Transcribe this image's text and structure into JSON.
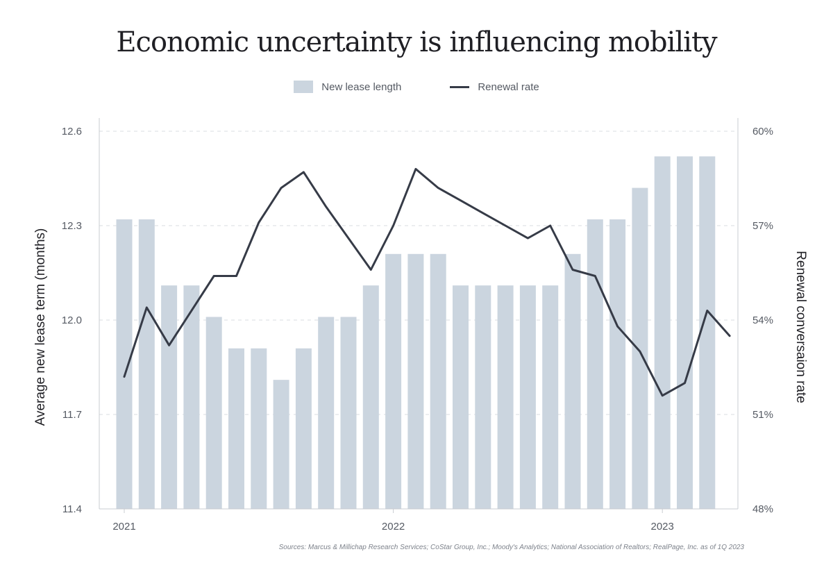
{
  "chart_data": {
    "type": "bar",
    "title": "Economic uncertainty is influencing mobility",
    "legend": {
      "bar_label": "New lease length",
      "line_label": "Renewal rate",
      "placement": "top-center"
    },
    "ylabel": "Average new lease term (months)",
    "ylabel_right": "Renewal conversaion rate",
    "ylim": [
      11.4,
      12.6
    ],
    "yticks": [
      "11.4",
      "11.7",
      "12.0",
      "12.3",
      "12.6"
    ],
    "ylim_right": [
      48,
      60
    ],
    "yticks_right": [
      "48%",
      "51%",
      "54%",
      "57%",
      "60%"
    ],
    "xtick_labels": [
      {
        "label": "2021",
        "index": 0
      },
      {
        "label": "2022",
        "index": 12
      },
      {
        "label": "2023",
        "index": 24
      }
    ],
    "grid": true,
    "series": [
      {
        "name": "New lease length",
        "type": "bar",
        "axis": "left",
        "values": [
          12.32,
          12.32,
          12.11,
          12.11,
          12.01,
          11.91,
          11.91,
          11.81,
          11.91,
          12.01,
          12.01,
          12.11,
          12.21,
          12.21,
          12.21,
          12.11,
          12.11,
          12.11,
          12.11,
          12.11,
          12.21,
          12.32,
          12.32,
          12.42,
          12.52,
          12.52,
          12.52
        ]
      },
      {
        "name": "Renewal rate",
        "type": "line",
        "axis": "right",
        "values": [
          52.2,
          54.4,
          53.2,
          54.3,
          55.4,
          55.4,
          57.1,
          58.2,
          58.7,
          57.6,
          56.6,
          55.6,
          57.0,
          58.8,
          58.2,
          57.8,
          57.4,
          57.0,
          56.6,
          57.0,
          55.6,
          55.4,
          53.8,
          53.0,
          51.6,
          52.0,
          54.3,
          53.5
        ]
      }
    ],
    "colors": {
      "bar": "#cbd5df",
      "line": "#363b47",
      "grid": "#d9dce0",
      "axis_text": "#555a63"
    }
  },
  "source": "Sources: Marcus & Millichap Research Services; CoStar Group, Inc.; Moody's Analytics; National Association of Realtors; RealPage, Inc. as of 1Q 2023"
}
